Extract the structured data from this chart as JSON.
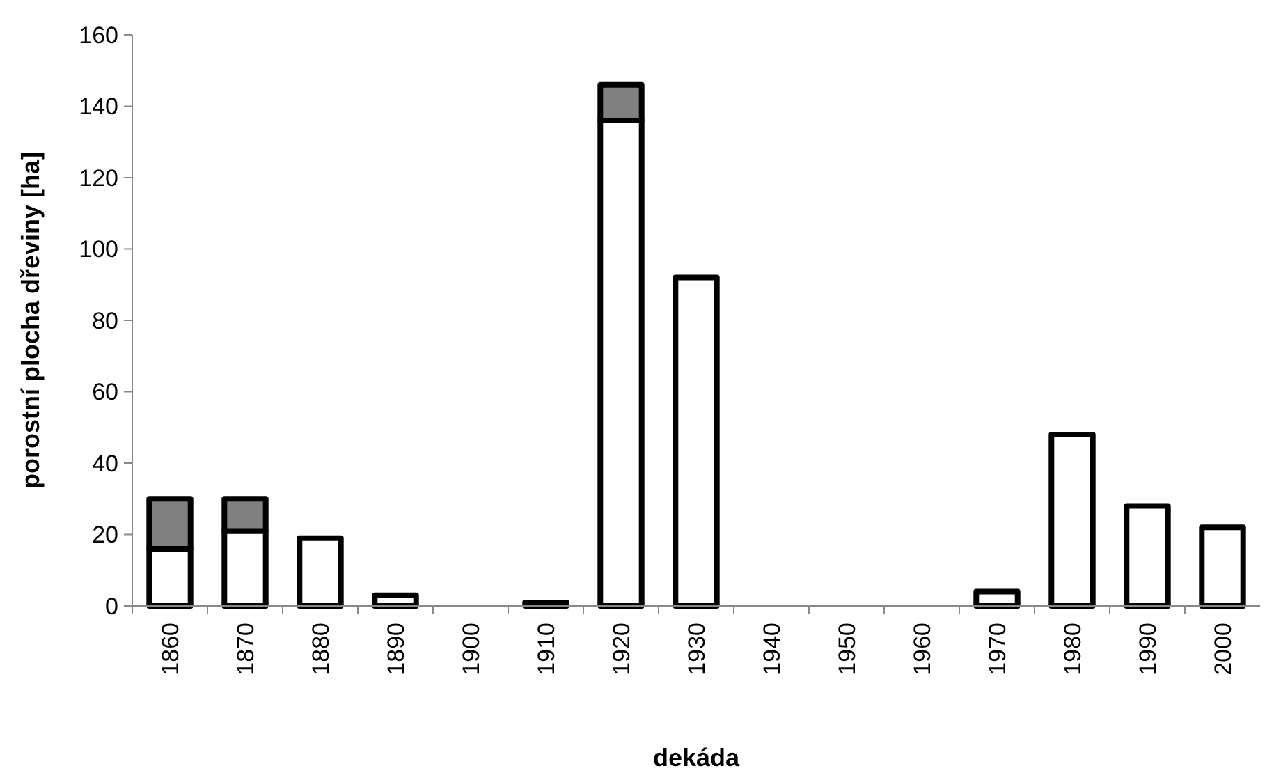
{
  "chart_data": {
    "type": "bar",
    "stacked": true,
    "xlabel": "dekáda",
    "ylabel": "porostní plocha dřeviny [ha]",
    "categories": [
      "1860",
      "1870",
      "1880",
      "1890",
      "1900",
      "1910",
      "1920",
      "1930",
      "1940",
      "1950",
      "1960",
      "1970",
      "1980",
      "1990",
      "2000"
    ],
    "series": [
      {
        "color": "#ffffff",
        "values": [
          16,
          21,
          19,
          3,
          0,
          1,
          136,
          92,
          0,
          0,
          0,
          4,
          48,
          28,
          22
        ]
      },
      {
        "color": "#808080",
        "values": [
          14,
          9,
          0,
          0,
          0,
          0,
          10,
          0,
          0,
          0,
          0,
          0,
          0,
          0,
          0
        ]
      }
    ],
    "ylim": [
      0,
      160
    ],
    "yticks": [
      0,
      20,
      40,
      60,
      80,
      100,
      120,
      140,
      160
    ],
    "grid": false
  }
}
